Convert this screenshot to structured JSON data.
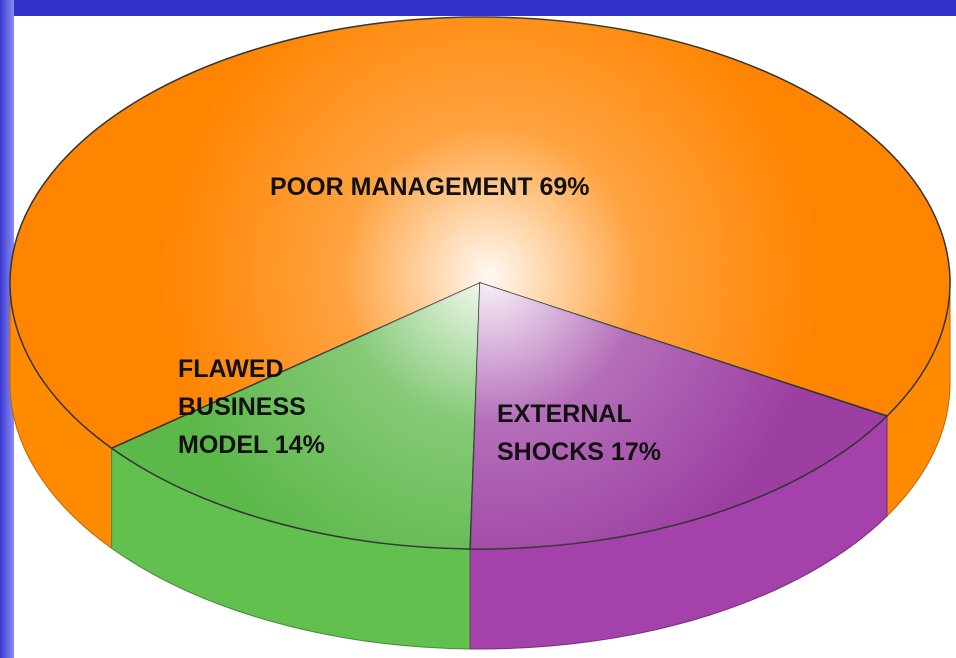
{
  "chart_data": {
    "type": "pie",
    "categories": [
      "POOR MANAGEMENT",
      "FLAWED BUSINESS MODEL",
      "EXTERNAL SHOCKS"
    ],
    "values": [
      69,
      14,
      17
    ],
    "value_labels": [
      "69%",
      "14%",
      "17%"
    ],
    "colors": [
      "#ff8400",
      "#5db84a",
      "#9c3ea2"
    ]
  }
}
